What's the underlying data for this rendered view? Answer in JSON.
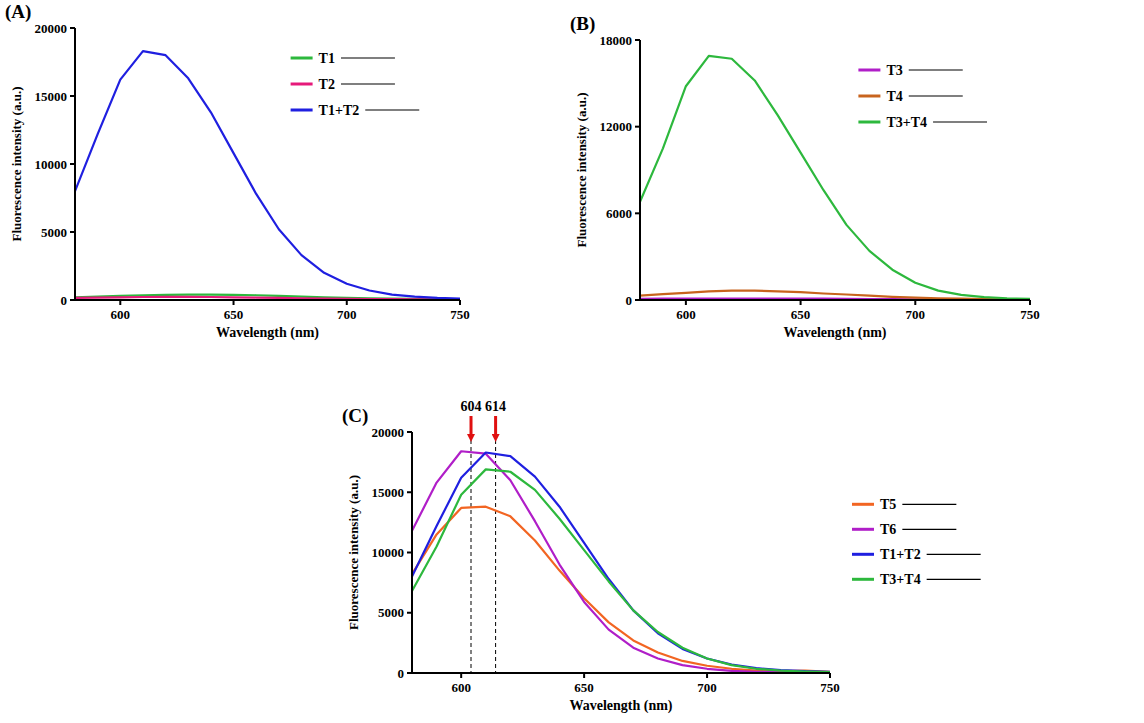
{
  "chart_data": [
    {
      "type": "line",
      "title": "(A)",
      "x_label": "Wavelength (nm)",
      "y_label": "Fluorescence intensity (a.u.)",
      "x": [
        580,
        590,
        600,
        610,
        620,
        630,
        640,
        650,
        660,
        670,
        680,
        690,
        700,
        710,
        720,
        730,
        740,
        750
      ],
      "xlim": [
        580,
        750
      ],
      "xticks": [
        600,
        650,
        700,
        750
      ],
      "ylim": [
        0,
        20000
      ],
      "yticks": [
        0,
        5000,
        10000,
        15000,
        20000
      ],
      "legend": "upper right",
      "series": [
        {
          "name": "T1",
          "color": "#2db83d",
          "values": [
            200,
            250,
            300,
            350,
            380,
            400,
            400,
            380,
            350,
            300,
            250,
            200,
            150,
            120,
            100,
            80,
            60,
            50
          ]
        },
        {
          "name": "T2",
          "color": "#e6197a",
          "values": [
            150,
            180,
            200,
            220,
            230,
            230,
            220,
            200,
            180,
            150,
            130,
            110,
            90,
            70,
            60,
            50,
            40,
            30
          ]
        },
        {
          "name": "T1+T2",
          "color": "#1f1fe0",
          "values": [
            8000,
            12200,
            16200,
            18300,
            18000,
            16300,
            13800,
            10800,
            7800,
            5200,
            3300,
            2000,
            1200,
            700,
            400,
            250,
            150,
            100
          ]
        }
      ]
    },
    {
      "type": "line",
      "title": "(B)",
      "x_label": "Wavelength (nm)",
      "y_label": "Fluorescence intensity (a.u.)",
      "x": [
        580,
        590,
        600,
        610,
        620,
        630,
        640,
        650,
        660,
        670,
        680,
        690,
        700,
        710,
        720,
        730,
        740,
        750
      ],
      "xlim": [
        580,
        750
      ],
      "xticks": [
        600,
        650,
        700,
        750
      ],
      "ylim": [
        0,
        18000
      ],
      "yticks": [
        0,
        6000,
        12000,
        18000
      ],
      "legend": "upper right",
      "series": [
        {
          "name": "T3",
          "color": "#b01ec8",
          "values": [
            80,
            90,
            100,
            100,
            100,
            100,
            100,
            90,
            90,
            80,
            70,
            60,
            50,
            40,
            30,
            30,
            20,
            20
          ]
        },
        {
          "name": "T4",
          "color": "#c8641e",
          "values": [
            300,
            400,
            500,
            600,
            650,
            650,
            600,
            550,
            450,
            380,
            300,
            220,
            160,
            120,
            90,
            60,
            40,
            30
          ]
        },
        {
          "name": "T3+T4",
          "color": "#2db83d",
          "values": [
            6800,
            10500,
            14800,
            16900,
            16700,
            15200,
            12800,
            10200,
            7600,
            5200,
            3400,
            2100,
            1200,
            650,
            350,
            200,
            120,
            80
          ]
        }
      ]
    },
    {
      "type": "line",
      "title": "(C)",
      "x_label": "Wavelength (nm)",
      "y_label": "Fluorescence intensity (a.u.)",
      "x": [
        580,
        590,
        600,
        610,
        620,
        630,
        640,
        650,
        660,
        670,
        680,
        690,
        700,
        710,
        720,
        730,
        740,
        750
      ],
      "xlim": [
        580,
        750
      ],
      "xticks": [
        600,
        650,
        700,
        750
      ],
      "ylim": [
        0,
        20000
      ],
      "yticks": [
        0,
        5000,
        10000,
        15000,
        20000
      ],
      "legend": "right",
      "annotations": [
        {
          "text": "604",
          "x": 604
        },
        {
          "text": "614",
          "x": 614
        }
      ],
      "series": [
        {
          "name": "T5",
          "color": "#f26522",
          "values": [
            8200,
            11500,
            13700,
            13800,
            13000,
            11000,
            8500,
            6200,
            4200,
            2700,
            1700,
            1000,
            600,
            350,
            200,
            150,
            200,
            100
          ]
        },
        {
          "name": "T6",
          "color": "#b01ec8",
          "values": [
            11800,
            15800,
            18400,
            18200,
            16000,
            12600,
            9000,
            5900,
            3600,
            2100,
            1200,
            650,
            350,
            180,
            100,
            60,
            40,
            30
          ]
        },
        {
          "name": "T1+T2",
          "color": "#1f1fe0",
          "values": [
            8000,
            12200,
            16200,
            18300,
            18000,
            16300,
            13800,
            10800,
            7800,
            5200,
            3300,
            2000,
            1200,
            700,
            400,
            250,
            150,
            100
          ]
        },
        {
          "name": "T3+T4",
          "color": "#2db83d",
          "values": [
            6800,
            10500,
            14800,
            16900,
            16700,
            15200,
            12800,
            10200,
            7600,
            5200,
            3400,
            2100,
            1200,
            650,
            350,
            200,
            120,
            80
          ]
        }
      ]
    }
  ]
}
